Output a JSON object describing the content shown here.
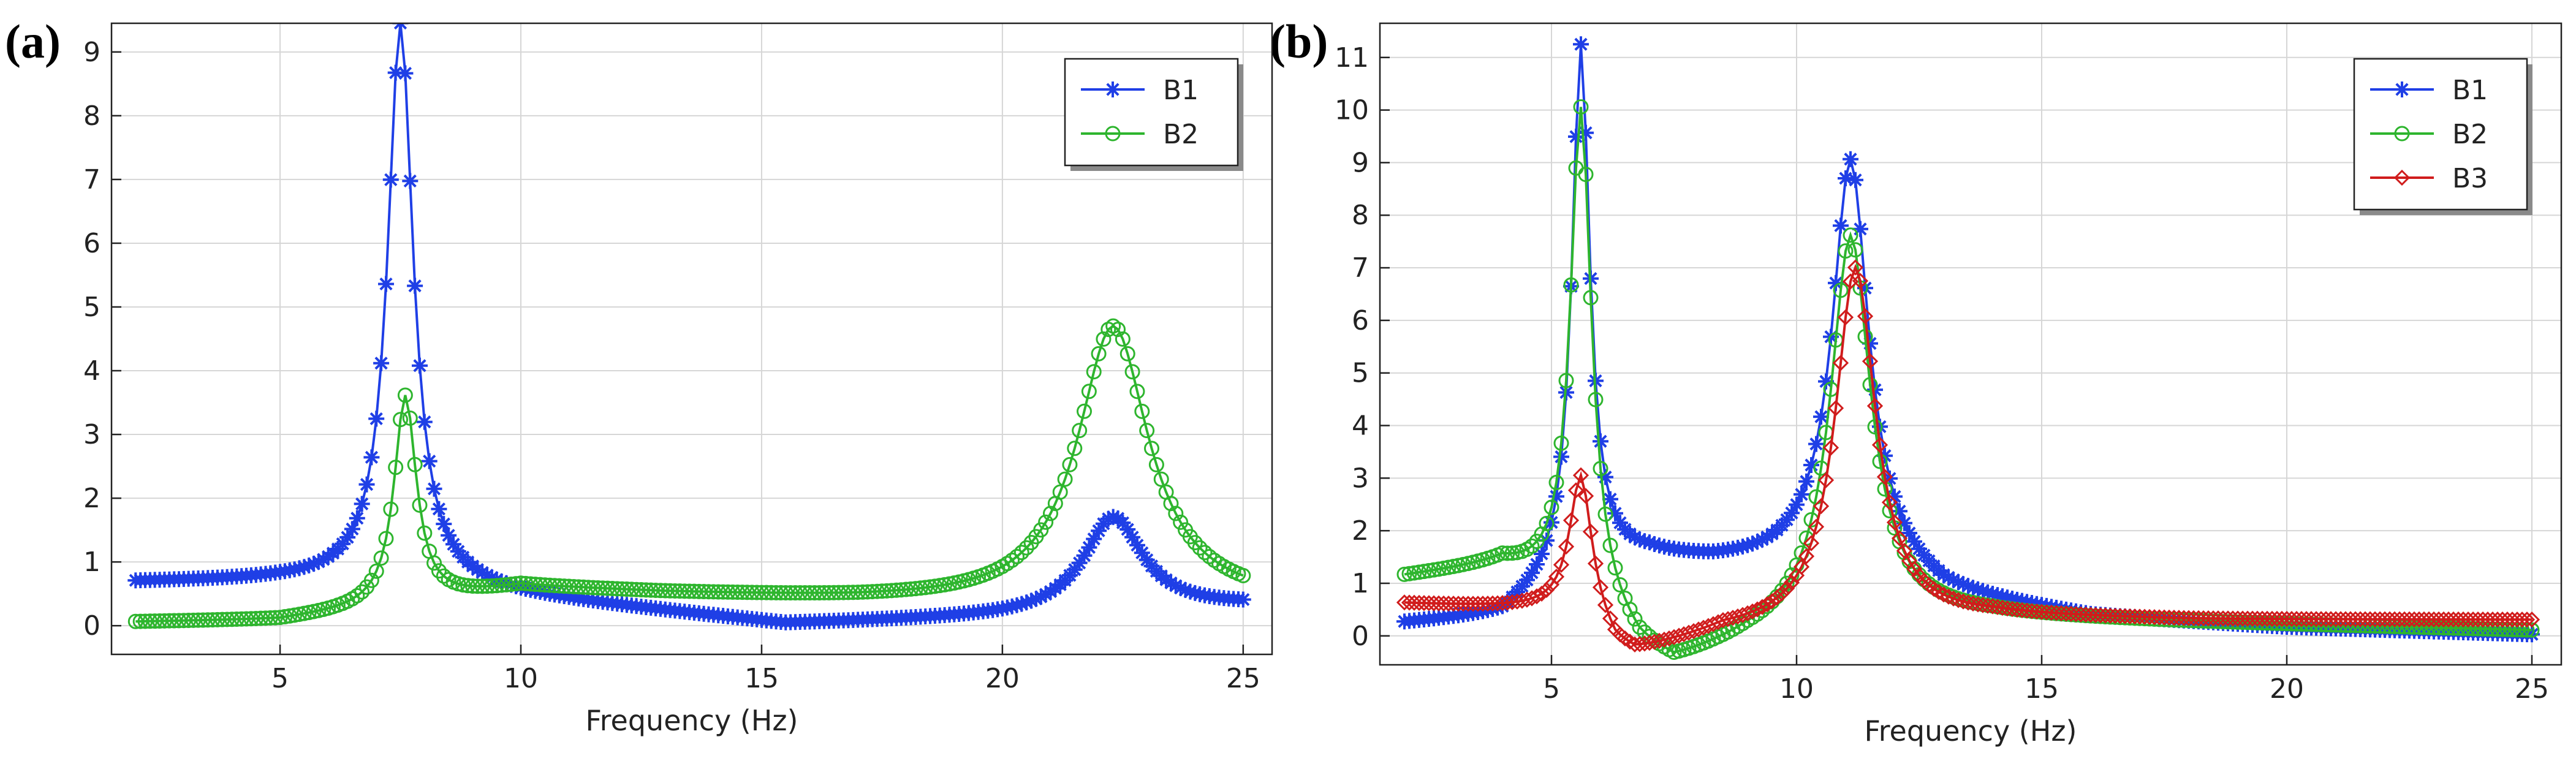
{
  "chart_data": [
    {
      "panel": "(a)",
      "type": "line",
      "xlabel": "Frequency (Hz)",
      "ylabel": "",
      "xlim": [
        1.5,
        25.6
      ],
      "ylim": [
        -0.45,
        9.45
      ],
      "xticks": [
        5,
        10,
        15,
        20,
        25
      ],
      "yticks": [
        0,
        1,
        2,
        3,
        4,
        5,
        6,
        7,
        8,
        9
      ],
      "grid": true,
      "legend_position": "top-right",
      "x_start": 2,
      "x_end": 25,
      "x_step": 0.1,
      "series": [
        {
          "name": "B1",
          "color": "#1f3fe6",
          "marker": "asterisk",
          "peaks": [
            {
              "f0": 7.5,
              "gamma": 0.32,
              "amp": 8.75
            },
            {
              "f0": 22.3,
              "gamma": 0.75,
              "amp": 1.5
            }
          ],
          "baseline": [
            [
              2,
              0.68
            ],
            [
              5,
              0.7
            ],
            [
              7.5,
              0.7
            ],
            [
              10,
              0.45
            ],
            [
              15.5,
              0.02
            ],
            [
              20,
              0.12
            ],
            [
              25,
              0.3
            ]
          ]
        },
        {
          "name": "B2",
          "color": "#2eb52e",
          "marker": "circle",
          "peaks": [
            {
              "f0": 7.6,
              "gamma": 0.28,
              "amp": 3.3
            },
            {
              "f0": 22.3,
              "gamma": 0.9,
              "amp": 4.35
            }
          ],
          "baseline": [
            [
              2,
              0.05
            ],
            [
              5,
              0.08
            ],
            [
              7.6,
              0.3
            ],
            [
              10,
              0.6
            ],
            [
              13,
              0.5
            ],
            [
              17,
              0.4
            ],
            [
              20,
              0.35
            ],
            [
              25,
              0.35
            ]
          ]
        }
      ]
    },
    {
      "panel": "(b)",
      "type": "line",
      "xlabel": "Frequency (Hz)",
      "ylabel": "",
      "xlim": [
        1.5,
        25.6
      ],
      "ylim": [
        -0.55,
        11.65
      ],
      "xticks": [
        5,
        10,
        15,
        20,
        25
      ],
      "yticks": [
        0,
        1,
        2,
        3,
        4,
        5,
        6,
        7,
        8,
        9,
        10,
        11
      ],
      "grid": true,
      "legend_position": "top-right",
      "x_start": 2,
      "x_end": 25,
      "x_step": 0.1,
      "series": [
        {
          "name": "B1",
          "color": "#1f3fe6",
          "marker": "asterisk",
          "peaks": [
            {
              "f0": 5.6,
              "gamma": 0.22,
              "amp": 9.9
            },
            {
              "f0": 11.1,
              "gamma": 0.45,
              "amp": 7.6
            }
          ],
          "baseline": [
            [
              2,
              0.22
            ],
            [
              4,
              0.35
            ],
            [
              5.6,
              1.3
            ],
            [
              7,
              1.45
            ],
            [
              8.3,
              1.35
            ],
            [
              9.5,
              1.35
            ],
            [
              11.1,
              1.45
            ],
            [
              13,
              0.75
            ],
            [
              16,
              0.35
            ],
            [
              20,
              0.15
            ],
            [
              25,
              0.02
            ]
          ]
        },
        {
          "name": "B2",
          "color": "#2eb52e",
          "marker": "circle",
          "peaks": [
            {
              "f0": 5.6,
              "gamma": 0.26,
              "amp": 9.3
            },
            {
              "f0": 11.1,
              "gamma": 0.5,
              "amp": 7.3
            }
          ],
          "baseline": [
            [
              2,
              1.1
            ],
            [
              4,
              1.3
            ],
            [
              5.6,
              0.7
            ],
            [
              6.8,
              -0.35
            ],
            [
              7.5,
              -0.62
            ],
            [
              9,
              -0.15
            ],
            [
              11.1,
              0.3
            ],
            [
              14,
              0.35
            ],
            [
              18,
              0.25
            ],
            [
              25,
              0.1
            ]
          ]
        },
        {
          "name": "B3",
          "color": "#d01c1c",
          "marker": "diamond",
          "peaks": [
            {
              "f0": 5.6,
              "gamma": 0.28,
              "amp": 2.55
            },
            {
              "f0": 11.2,
              "gamma": 0.5,
              "amp": 6.8
            }
          ],
          "baseline": [
            [
              2,
              0.6
            ],
            [
              5.6,
              0.45
            ],
            [
              6.3,
              -0.3
            ],
            [
              6.7,
              -0.4
            ],
            [
              8.5,
              0.05
            ],
            [
              11.2,
              0.2
            ],
            [
              14,
              0.35
            ],
            [
              18,
              0.3
            ],
            [
              25,
              0.3
            ]
          ]
        }
      ]
    }
  ]
}
